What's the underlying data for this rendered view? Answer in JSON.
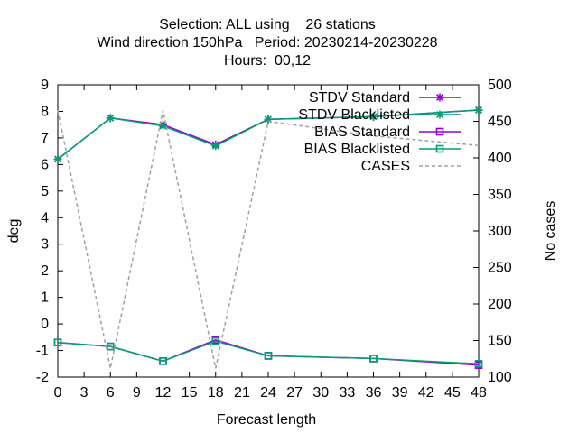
{
  "chart_data": {
    "type": "line",
    "title_lines": [
      "Selection: ALL using    26 stations",
      "Wind direction 150hPa   Period: 20230214-20230228",
      "Hours:  00,12"
    ],
    "xlabel": "Forecast length",
    "ylabel": "deg",
    "y2label": "No cases",
    "xlim": [
      0,
      48
    ],
    "ylim": [
      -2,
      9
    ],
    "y2lim": [
      100,
      500
    ],
    "xticks": [
      "0",
      "3",
      "6",
      "9",
      "12",
      "15",
      "18",
      "21",
      "24",
      "27",
      "30",
      "33",
      "36",
      "39",
      "42",
      "45",
      "48"
    ],
    "yticks": [
      "-2",
      "-1",
      "0",
      "1",
      "2",
      "3",
      "4",
      "5",
      "6",
      "7",
      "8",
      "9"
    ],
    "y2ticks": [
      "100",
      "150",
      "200",
      "250",
      "300",
      "350",
      "400",
      "450",
      "500"
    ],
    "grid": false,
    "legend_position": "top-right",
    "series": [
      {
        "name": "STDV Standard",
        "color": "#9400d3",
        "marker": "star",
        "dash": "solid",
        "axis": "y",
        "x": [
          0,
          6,
          12,
          18,
          24,
          36,
          48
        ],
        "values": [
          6.2,
          7.75,
          7.5,
          6.75,
          7.7,
          7.8,
          8.05
        ]
      },
      {
        "name": "STDV Blacklisted",
        "color": "#009e73",
        "marker": "star",
        "dash": "solid",
        "axis": "y",
        "x": [
          0,
          6,
          12,
          18,
          24,
          36,
          48
        ],
        "values": [
          6.2,
          7.75,
          7.45,
          6.7,
          7.7,
          7.8,
          8.05
        ]
      },
      {
        "name": "BIAS Standard",
        "color": "#9400d3",
        "marker": "square",
        "dash": "solid",
        "axis": "y",
        "x": [
          0,
          6,
          12,
          18,
          24,
          36,
          48
        ],
        "values": [
          -0.7,
          -0.85,
          -1.4,
          -0.6,
          -1.2,
          -1.3,
          -1.55
        ]
      },
      {
        "name": "BIAS Blacklisted",
        "color": "#009e73",
        "marker": "square",
        "dash": "solid",
        "axis": "y",
        "x": [
          0,
          6,
          12,
          18,
          24,
          36,
          48
        ],
        "values": [
          -0.7,
          -0.85,
          -1.4,
          -0.65,
          -1.2,
          -1.3,
          -1.5
        ]
      },
      {
        "name": "CASES",
        "color": "#a0a0a0",
        "marker": "none",
        "dash": "dashed",
        "axis": "y2",
        "x": [
          0,
          6,
          12,
          18,
          24,
          36,
          48
        ],
        "values": [
          465,
          112,
          465,
          112,
          450,
          430,
          417
        ]
      }
    ]
  }
}
